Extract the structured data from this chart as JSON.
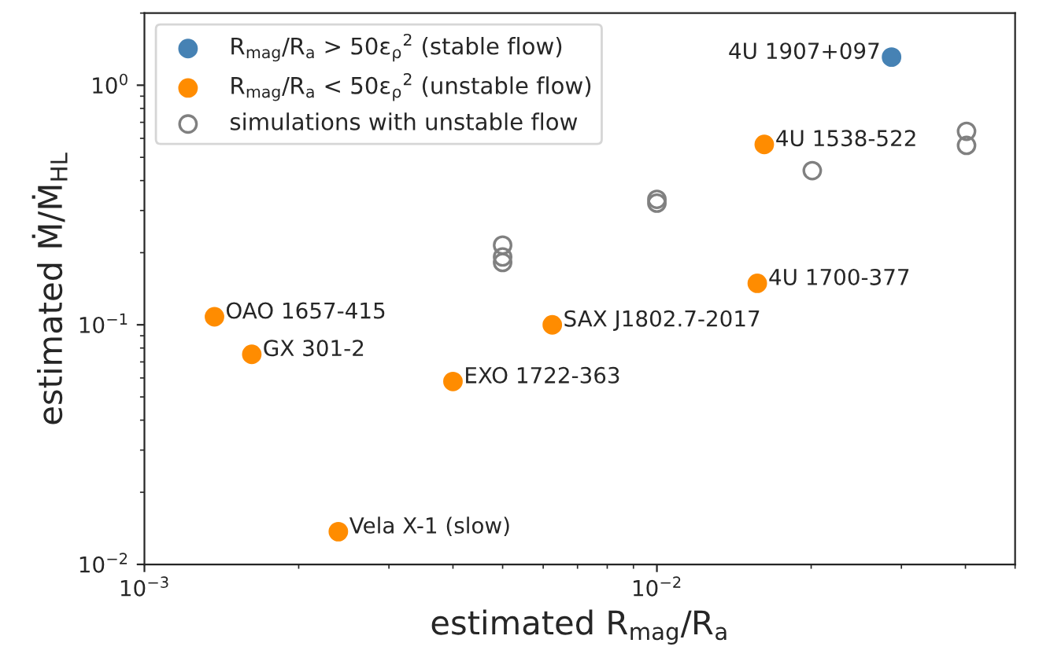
{
  "chart_data": {
    "type": "scatter",
    "xlabel": "estimated R$_{mag}$/R$_{a}$",
    "ylabel": "estimated Ṁ/Ṁ$_{HL}$",
    "log": "xy",
    "xlim": [
      0.001,
      0.05
    ],
    "ylim": [
      0.01,
      2
    ],
    "xticks": [
      {
        "value": 0.001,
        "label": "10$^{−3}$"
      },
      {
        "value": 0.01,
        "label": "10$^{−2}$"
      }
    ],
    "yticks": [
      {
        "value": 0.01,
        "label": "10$^{−2}$"
      },
      {
        "value": 0.1,
        "label": "10$^{−1}$"
      },
      {
        "value": 1,
        "label": "10$^{0}$"
      }
    ],
    "grid": false,
    "legend": "top left",
    "marker": "circle",
    "series": [
      {
        "name": "R$_{mag}$/R$_{a}$ > 50ε$_{ρ}$$^{2}$ (stable flow)",
        "color": "#4682b4",
        "x": [
          0.0287
        ],
        "values": [
          1.31
        ]
      },
      {
        "name": "R$_{mag}$/R$_{a}$ < 50ε$_{ρ}$$^{2}$ (unstable flow)",
        "color": "#ff8c00",
        "x": [
          0.00137,
          0.00162,
          0.00239,
          0.004,
          0.00625,
          0.0157,
          0.0162
        ],
        "values": [
          0.108,
          0.0753,
          0.0137,
          0.058,
          0.1,
          0.149,
          0.566
        ]
      },
      {
        "name": "simulations with unstable flow",
        "color": "#808080",
        "x": [
          0.005,
          0.005,
          0.005,
          0.01,
          0.01,
          0.0201,
          0.0402,
          0.0402
        ],
        "values": [
          0.215,
          0.192,
          0.182,
          0.334,
          0.322,
          0.44,
          0.642,
          0.561
        ]
      }
    ],
    "annotations": [
      {
        "text": "4U 1907+097",
        "x": 0.0287,
        "y": 1.31
      },
      {
        "text": "OAO 1657-415",
        "x": 0.00137,
        "y": 0.108
      },
      {
        "text": "GX 301-2",
        "x": 0.00162,
        "y": 0.0753
      },
      {
        "text": "Vela X-1 (slow)",
        "x": 0.00239,
        "y": 0.0137
      },
      {
        "text": "EXO 1722-363",
        "x": 0.004,
        "y": 0.058
      },
      {
        "text": "SAX J1802.7-2017",
        "x": 0.00625,
        "y": 0.1
      },
      {
        "text": "4U 1700-377",
        "x": 0.0157,
        "y": 0.149
      },
      {
        "text": "4U 1538-522",
        "x": 0.0162,
        "y": 0.566
      }
    ]
  }
}
